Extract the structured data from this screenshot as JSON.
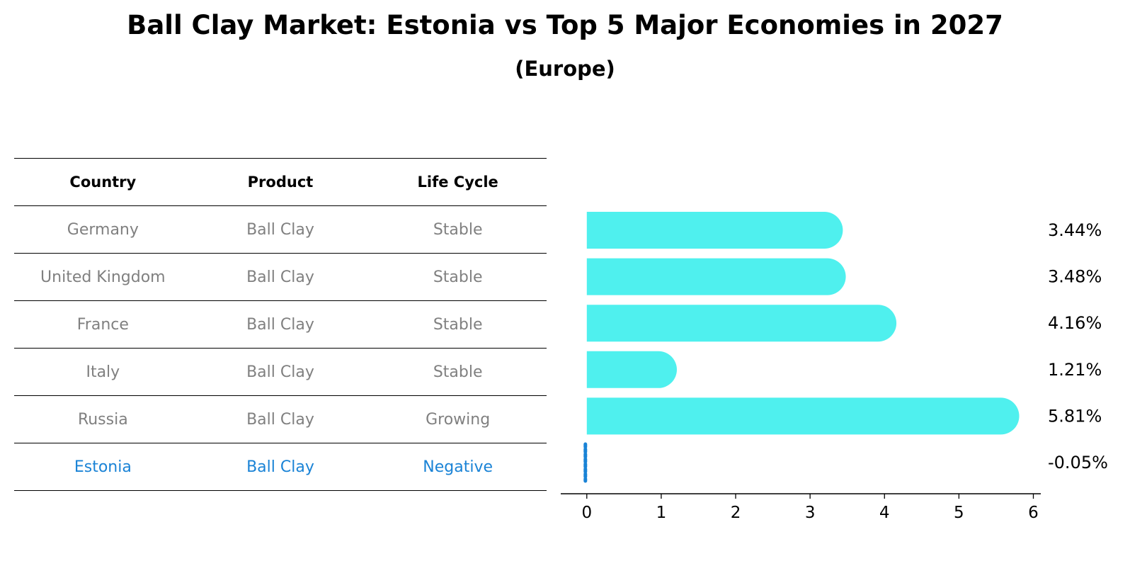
{
  "title": "Ball Clay Market: Estonia vs Top 5 Major Economies in 2027",
  "subtitle": "(Europe)",
  "table": {
    "headers": [
      "Country",
      "Product",
      "Life Cycle"
    ],
    "rows": [
      {
        "country": "Germany",
        "product": "Ball Clay",
        "life_cycle": "Stable"
      },
      {
        "country": "United Kingdom",
        "product": "Ball Clay",
        "life_cycle": "Stable"
      },
      {
        "country": "France",
        "product": "Ball Clay",
        "life_cycle": "Stable"
      },
      {
        "country": "Italy",
        "product": "Ball Clay",
        "life_cycle": "Stable"
      },
      {
        "country": "Russia",
        "product": "Ball Clay",
        "life_cycle": "Growing"
      },
      {
        "country": "Estonia",
        "product": "Ball Clay",
        "life_cycle": "Negative"
      }
    ],
    "highlight_color": "#1a83d6",
    "text_color": "#808080"
  },
  "chart_data": {
    "type": "bar",
    "orientation": "horizontal",
    "categories": [
      "Germany",
      "United Kingdom",
      "France",
      "Italy",
      "Russia",
      "Estonia"
    ],
    "values": [
      3.44,
      3.48,
      4.16,
      1.21,
      5.81,
      -0.05
    ],
    "value_labels": [
      "3.44%",
      "3.48%",
      "4.16%",
      "1.21%",
      "5.81%",
      "-0.05%"
    ],
    "xticks": [
      "0",
      "1",
      "2",
      "3",
      "4",
      "5",
      "6"
    ],
    "xlim": [
      -0.35,
      6.1
    ],
    "grid": false,
    "bar_color": "#4ff0ee",
    "highlight_color": "#1a83d6"
  }
}
